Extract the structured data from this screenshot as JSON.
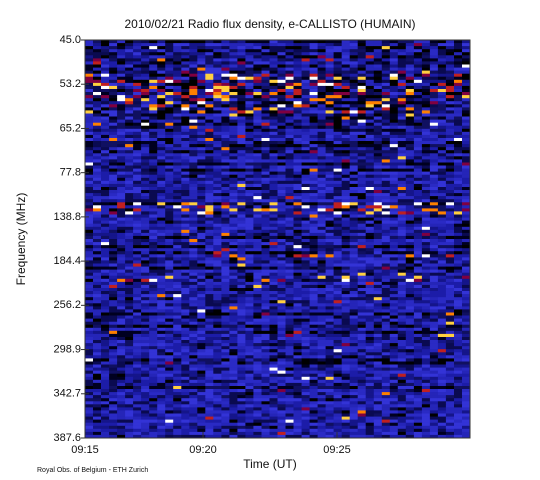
{
  "chart_data": {
    "type": "spectrogram",
    "title": "2010/02/21  Radio flux density, e-CALLISTO (HUMAIN)",
    "x_label": "Time (UT)",
    "y_label": "Frequency (MHz)",
    "xticks": [
      "09:15",
      "09:20",
      "09:25"
    ],
    "yticks": [
      {
        "value": 45,
        "label": "45.0"
      },
      53.2,
      65.2,
      77.8,
      138.8,
      184.4,
      256.2,
      298.9,
      342.7,
      387.6
    ],
    "credit": "Royal Obs. of Belgium - ETH Zurich"
  }
}
